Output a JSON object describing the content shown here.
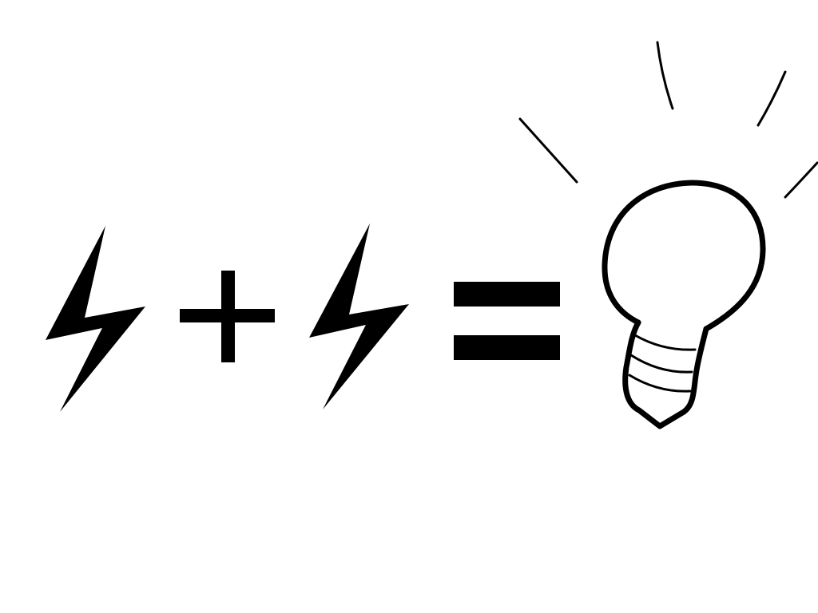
{
  "equation": {
    "terms": [
      "lightning-bolt",
      "plus-sign",
      "lightning-bolt",
      "equals-sign",
      "light-bulb"
    ]
  },
  "colors": {
    "background": "#ffffff",
    "ink": "#000000"
  },
  "icons": {
    "first_term": "lightning-bolt-icon",
    "operator": "plus-icon",
    "second_term": "lightning-bolt-icon",
    "result_operator": "equals-icon",
    "result": "light-bulb-icon"
  }
}
